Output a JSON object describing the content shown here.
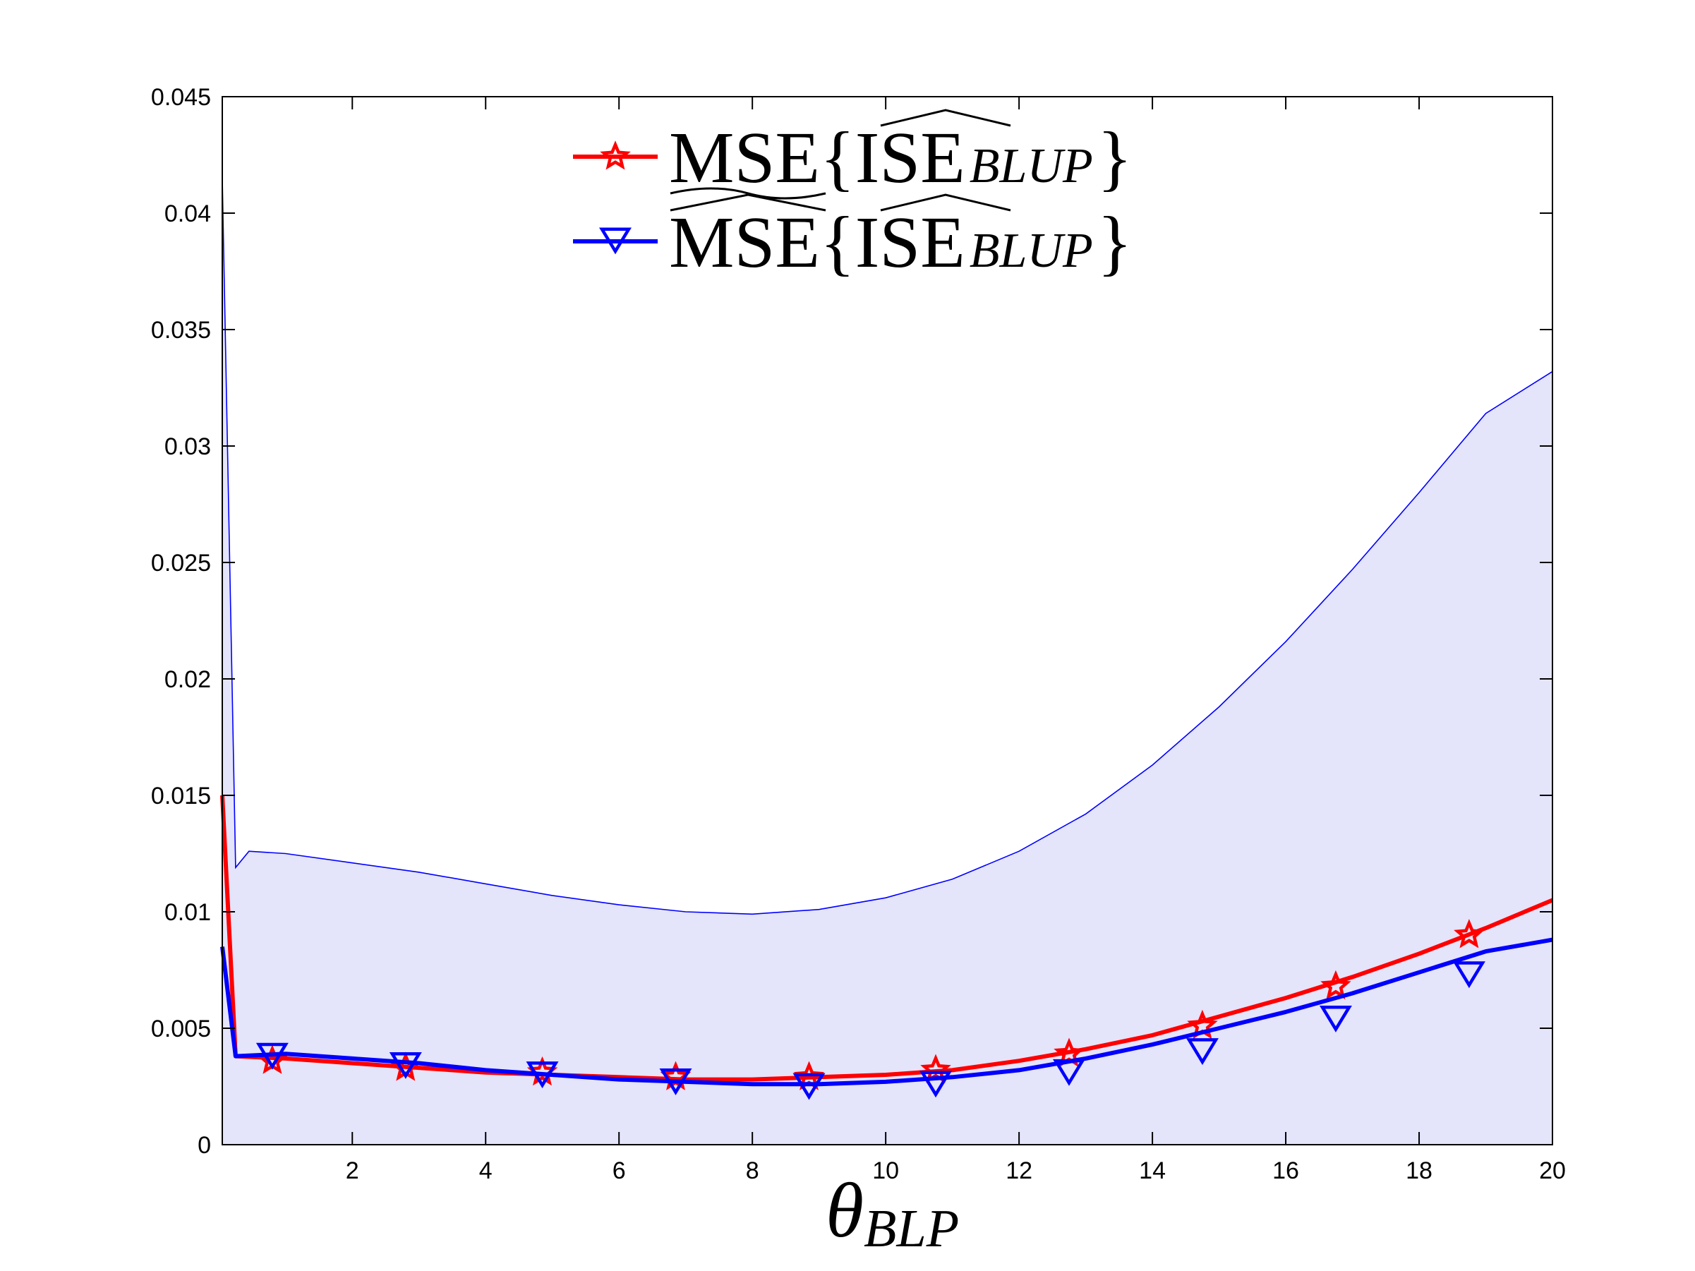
{
  "chart_data": {
    "type": "line",
    "title": "",
    "xlabel": {
      "main": "θ",
      "subscript": "BLP"
    },
    "ylabel": "",
    "xlim": [
      0.05,
      20
    ],
    "ylim": [
      0,
      0.045
    ],
    "xticks": [
      2,
      4,
      6,
      8,
      10,
      12,
      14,
      16,
      18,
      20
    ],
    "xtick_labels": [
      "2",
      "4",
      "6",
      "8",
      "10",
      "12",
      "14",
      "16",
      "18",
      "20"
    ],
    "yticks": [
      0,
      0.005,
      0.01,
      0.015,
      0.02,
      0.025,
      0.03,
      0.035,
      0.04,
      0.045
    ],
    "ytick_labels": [
      "0",
      "0.005",
      "0.01",
      "0.015",
      "0.02",
      "0.025",
      "0.03",
      "0.035",
      "0.04",
      "0.045"
    ],
    "grid": false,
    "legend_position": "top-center",
    "band": {
      "name": "band",
      "fill_color": "#e4e4fb",
      "edge_color": "#0000ff",
      "x": [
        0.05,
        0.25,
        0.45,
        1,
        2,
        3,
        4,
        5,
        6,
        7,
        8,
        9,
        10,
        11,
        12,
        13,
        14,
        15,
        16,
        17,
        18,
        19,
        20
      ],
      "upper": [
        0.0415,
        0.0119,
        0.0126,
        0.0125,
        0.0121,
        0.0117,
        0.0112,
        0.0107,
        0.0103,
        0.01,
        0.0099,
        0.0101,
        0.0106,
        0.0114,
        0.0126,
        0.0142,
        0.0163,
        0.0188,
        0.0216,
        0.0247,
        0.028,
        0.0314,
        0.0332
      ],
      "lower": [
        0,
        0,
        0,
        0,
        0,
        0,
        0,
        0,
        0,
        0,
        0,
        0,
        0,
        0,
        0,
        0,
        0,
        0,
        0,
        0,
        0,
        0,
        0
      ]
    },
    "series": [
      {
        "name": "MSE-tilde{ISE-hat_BLUP}",
        "legend": {
          "main": "MSE{ISE}",
          "subscript": "BLUP",
          "accent_bottom": "~",
          "accent_top": "^"
        },
        "color": "#ff0000",
        "marker": "star",
        "x": [
          0.05,
          0.25,
          1,
          2,
          3,
          4,
          5,
          6,
          7,
          8,
          9,
          10,
          11,
          12,
          13,
          14,
          15,
          16,
          17,
          18,
          19,
          20
        ],
        "y": [
          0.015,
          0.0038,
          0.0037,
          0.0035,
          0.0033,
          0.0031,
          0.003,
          0.0029,
          0.0028,
          0.0028,
          0.0029,
          0.003,
          0.0032,
          0.0036,
          0.0041,
          0.0047,
          0.0055,
          0.0063,
          0.0072,
          0.0082,
          0.0093,
          0.0105
        ],
        "marker_x": [
          0.8,
          2.8,
          4.85,
          6.85,
          8.85,
          10.75,
          12.75,
          14.75,
          16.75,
          18.75
        ],
        "marker_y": [
          0.0036,
          0.0033,
          0.0031,
          0.0029,
          0.0029,
          0.0032,
          0.0039,
          0.0051,
          0.0068,
          0.009
        ]
      },
      {
        "name": "MSE-hat{ISE-hat_BLUP}",
        "legend": {
          "main": "MSE{ISE}",
          "subscript": "BLUP",
          "accent_bottom": "",
          "accent_top": "^"
        },
        "color": "#0000ff",
        "marker": "triangle-down",
        "x": [
          0.05,
          0.25,
          1,
          2,
          3,
          4,
          5,
          6,
          7,
          8,
          9,
          10,
          11,
          12,
          13,
          14,
          15,
          16,
          17,
          18,
          19,
          20
        ],
        "y": [
          0.0085,
          0.0038,
          0.0039,
          0.0037,
          0.0035,
          0.0032,
          0.003,
          0.0028,
          0.0027,
          0.0026,
          0.0026,
          0.0027,
          0.0029,
          0.0032,
          0.0037,
          0.0043,
          0.005,
          0.0057,
          0.0065,
          0.0074,
          0.0083,
          0.0088
        ],
        "marker_x": [
          0.8,
          2.8,
          4.85,
          6.85,
          8.85,
          10.75,
          12.75,
          14.75,
          16.75,
          18.75
        ],
        "marker_y": [
          0.0039,
          0.0035,
          0.0031,
          0.0028,
          0.0026,
          0.0027,
          0.0032,
          0.0041,
          0.0055,
          0.0074
        ]
      }
    ]
  }
}
